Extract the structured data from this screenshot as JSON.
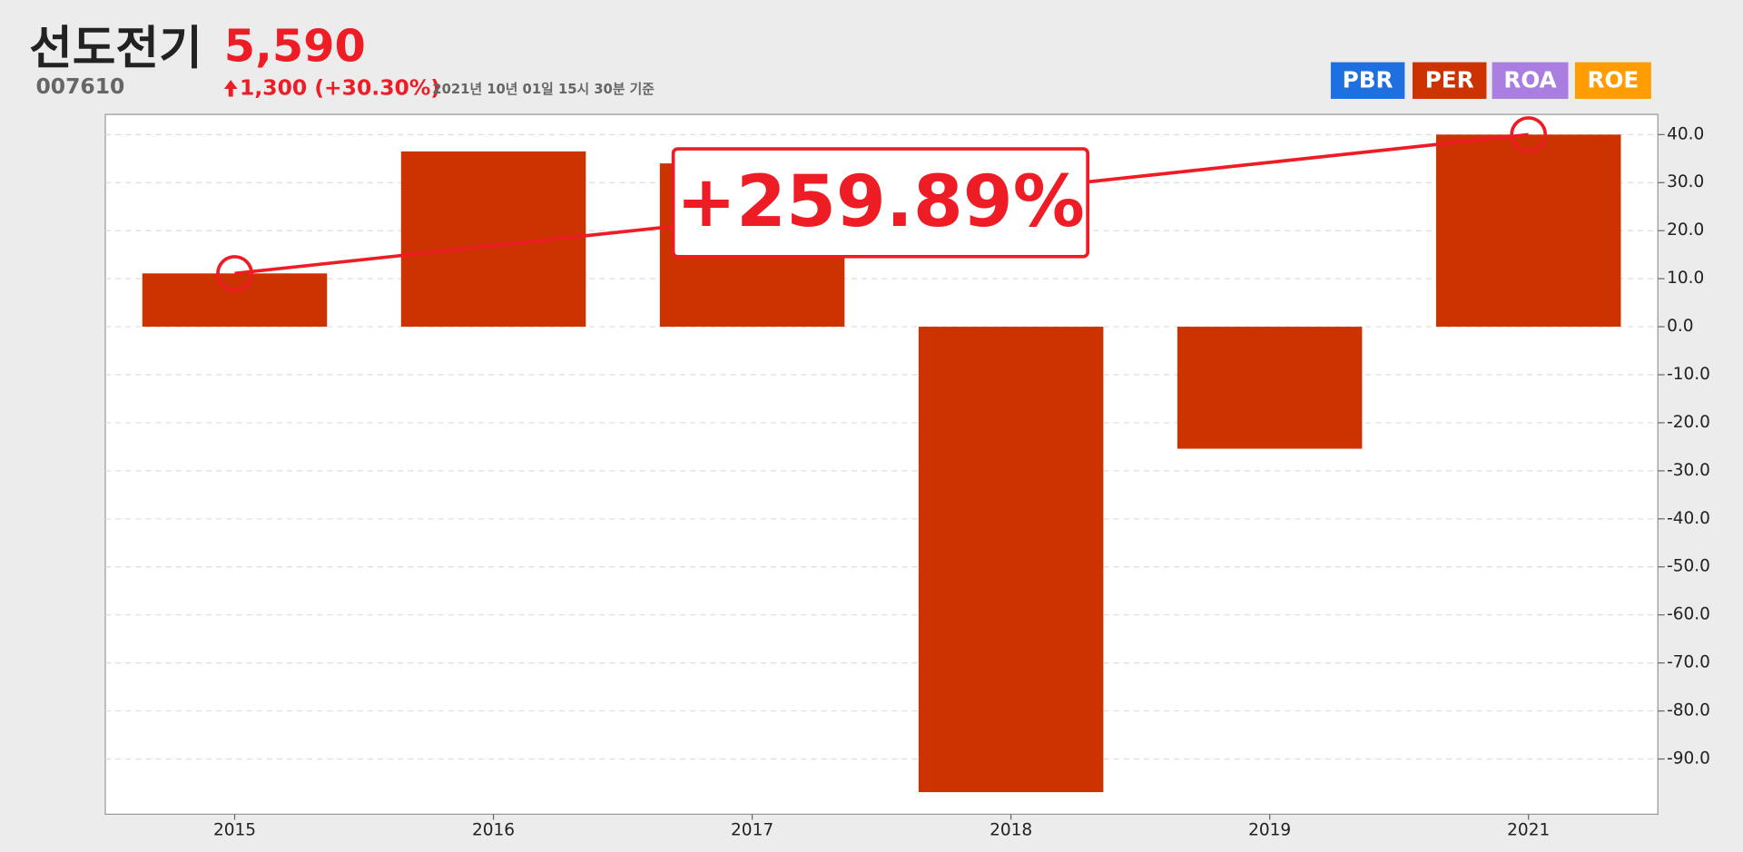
{
  "header": {
    "name": "선도전기",
    "price": "5,590",
    "code": "007610",
    "change": "1,300 (+30.30%)",
    "timestamp": "2021년 10년 01일 15시 30분 기준"
  },
  "buttons": [
    {
      "label": "PBR",
      "color": "#1e6fe0"
    },
    {
      "label": "PER",
      "color": "#cc3300"
    },
    {
      "label": "ROA",
      "color": "#a97ee0"
    },
    {
      "label": "ROE",
      "color": "#ff9d00"
    }
  ],
  "chart_data": {
    "type": "bar",
    "categories": [
      "2015",
      "2016",
      "2017",
      "2018",
      "2019",
      "2021"
    ],
    "values": [
      11.1,
      36.5,
      34.0,
      -96.9,
      -25.4,
      40.0
    ],
    "color": "#cc3300",
    "annotation": "+259.89%",
    "ylim": [
      -101.5,
      44.2
    ],
    "yticks": [
      {
        "value": -90,
        "label": "-90.0"
      },
      {
        "value": -80,
        "label": "-80.0"
      },
      {
        "value": -70,
        "label": "-70.0"
      },
      {
        "value": -60,
        "label": "-60.0"
      },
      {
        "value": -50,
        "label": "-50.0"
      },
      {
        "value": -40,
        "label": "-40.0"
      },
      {
        "value": -30,
        "label": "-30.0"
      },
      {
        "value": -20,
        "label": "-20.0"
      },
      {
        "value": -10,
        "label": "-10.0"
      },
      {
        "value": 0,
        "label": "0.0"
      },
      {
        "value": 10,
        "label": "10.0"
      },
      {
        "value": 20,
        "label": "20.0"
      },
      {
        "value": 30,
        "label": "30.0"
      },
      {
        "value": 40,
        "label": "40.0"
      }
    ],
    "grid": true
  }
}
